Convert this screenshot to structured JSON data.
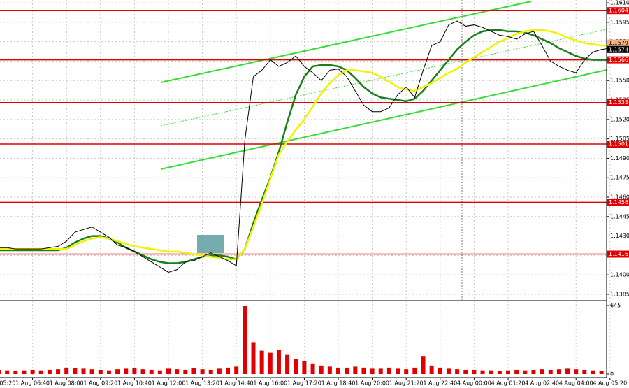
{
  "chart_data": {
    "type": "line",
    "categories": [
      "1 Aug 05:20",
      null,
      null,
      null,
      "1 Aug 06:40",
      null,
      null,
      null,
      "1 Aug 08:00",
      null,
      null,
      null,
      "1 Aug 09:20",
      null,
      null,
      null,
      "1 Aug 10:40",
      null,
      null,
      null,
      "1 Aug 12:00",
      null,
      null,
      null,
      "1 Aug 13:20",
      null,
      null,
      null,
      "1 Aug 14:40",
      null,
      null,
      null,
      "1 Aug 16:00",
      null,
      null,
      null,
      "1 Aug 17:20",
      null,
      null,
      null,
      "1 Aug 18:40",
      null,
      null,
      null,
      "1 Aug 20:00",
      null,
      null,
      null,
      "1 Aug 21:20",
      null,
      null,
      null,
      "1 Aug 22:40",
      null,
      null,
      null,
      "4 Aug 00:00",
      null,
      null,
      null,
      "4 Aug 01:20",
      null,
      null,
      null,
      "4 Aug 02:40",
      null,
      null,
      null,
      "4 Aug 04:00",
      null,
      null,
      null,
      "4 Aug 05:20"
    ],
    "series": [
      {
        "color": "#000000",
        "values": [
          1.1421,
          1.1421,
          1.142,
          1.142,
          1.142,
          1.142,
          1.1421,
          1.1422,
          1.1426,
          1.1433,
          1.1435,
          1.1437,
          1.1433,
          1.1429,
          1.1423,
          1.1421,
          1.1418,
          1.1414,
          1.141,
          1.1406,
          1.1402,
          1.1404,
          1.141,
          1.1411,
          1.1414,
          1.1417,
          1.1414,
          1.1411,
          1.1407,
          1.1504,
          1.1553,
          1.1558,
          1.1566,
          1.1561,
          1.1564,
          1.1569,
          1.1561,
          1.1556,
          1.155,
          1.1558,
          1.1559,
          1.1553,
          1.1542,
          1.1531,
          1.1526,
          1.1526,
          1.1529,
          1.1539,
          1.1545,
          1.1537,
          1.1558,
          1.1577,
          1.158,
          1.1593,
          1.1596,
          1.1592,
          1.1593,
          1.1591,
          1.1588,
          1.1585,
          1.1584,
          1.1582,
          1.1586,
          1.1588,
          1.1577,
          1.1565,
          1.1561,
          1.1558,
          1.1556,
          1.1566,
          1.1572,
          1.1574,
          1.1575
        ]
      },
      {
        "color": "#1a7f1a",
        "values": [
          1.1419,
          1.1419,
          1.1419,
          1.1419,
          1.1419,
          1.1419,
          1.1419,
          1.1419,
          1.1421,
          1.1425,
          1.1428,
          1.143,
          1.143,
          1.1428,
          1.1425,
          1.1421,
          1.1418,
          1.1415,
          1.1412,
          1.141,
          1.1409,
          1.1409,
          1.141,
          1.1412,
          1.1414,
          1.1415,
          1.1415,
          1.1414,
          1.1412,
          1.142,
          1.144,
          1.1458,
          1.1475,
          1.1495,
          1.1518,
          1.1539,
          1.1553,
          1.1561,
          1.1562,
          1.1562,
          1.1561,
          1.1558,
          1.1552,
          1.1545,
          1.154,
          1.1537,
          1.1536,
          1.1535,
          1.1534,
          1.1536,
          1.1542,
          1.155,
          1.1558,
          1.1566,
          1.1574,
          1.158,
          1.1585,
          1.1588,
          1.1589,
          1.1589,
          1.1588,
          1.1588,
          1.1587,
          1.1585,
          1.1582,
          1.1579,
          1.1575,
          1.1572,
          1.1569,
          1.1567,
          1.1566,
          1.1566,
          1.1566
        ]
      },
      {
        "color": "#f2f200",
        "values": [
          1.142,
          1.142,
          1.142,
          1.142,
          1.142,
          1.142,
          1.142,
          1.142,
          1.142,
          1.1423,
          1.1426,
          1.1428,
          1.1429,
          1.1428,
          1.1426,
          1.1424,
          1.1422,
          1.1421,
          1.142,
          1.1419,
          1.1418,
          1.1418,
          1.1417,
          1.1416,
          1.1415,
          1.1414,
          1.1413,
          1.1412,
          1.1412,
          1.142,
          1.1437,
          1.1455,
          1.1474,
          1.1493,
          1.1503,
          1.1512,
          1.152,
          1.153,
          1.154,
          1.1548,
          1.1554,
          1.1558,
          1.1558,
          1.1557,
          1.1556,
          1.1553,
          1.1549,
          1.1545,
          1.1543,
          1.1542,
          1.1545,
          1.1548,
          1.1552,
          1.1556,
          1.1559,
          1.1564,
          1.1568,
          1.1572,
          1.1576,
          1.158,
          1.1583,
          1.1586,
          1.1588,
          1.1589,
          1.1589,
          1.1588,
          1.1586,
          1.1583,
          1.1581,
          1.1579,
          1.1578,
          1.1577,
          1.1577
        ]
      }
    ],
    "ylim": [
      1.13812,
      1.16122
    ],
    "yticks": [
      1.1385,
      {
        "value": 1.14,
        "label": "1.1400"
      },
      1.1415,
      {
        "value": 1.143,
        "label": "1.1430"
      },
      1.1445,
      {
        "value": 1.146,
        "label": "1.1460"
      },
      1.1475,
      {
        "value": 1.149,
        "label": "1.1490"
      },
      1.1505,
      {
        "value": 1.152,
        "label": "1.1520"
      },
      1.1535,
      {
        "value": 1.155,
        "label": "1.1550"
      },
      1.1565,
      {
        "value": 1.158,
        "label": "1.1580"
      },
      1.1595,
      {
        "value": 1.161,
        "label": "1.1610"
      }
    ],
    "grid": true,
    "levels": [
      1.1604,
      1.1566,
      1.1533,
      1.1501,
      1.1456,
      1.1416
    ],
    "level_color": "#e00000",
    "ask": 1.1579,
    "bid": 1.1574,
    "volume": {
      "color": "#e00000",
      "values": [
        40,
        35,
        30,
        35,
        40,
        35,
        40,
        45,
        60,
        55,
        50,
        45,
        40,
        35,
        45,
        50,
        55,
        45,
        40,
        35,
        50,
        45,
        40,
        55,
        45,
        40,
        50,
        60,
        70,
        645,
        300,
        220,
        200,
        230,
        180,
        140,
        120,
        100,
        80,
        70,
        60,
        60,
        70,
        60,
        50,
        50,
        60,
        50,
        45,
        60,
        170,
        80,
        60,
        50,
        45,
        40,
        40,
        35,
        35,
        30,
        35,
        40,
        35,
        40,
        45,
        40,
        45,
        50,
        45,
        40,
        35,
        30,
        30
      ],
      "ylim": [
        0,
        645
      ],
      "yticks": [
        0,
        645
      ]
    }
  }
}
